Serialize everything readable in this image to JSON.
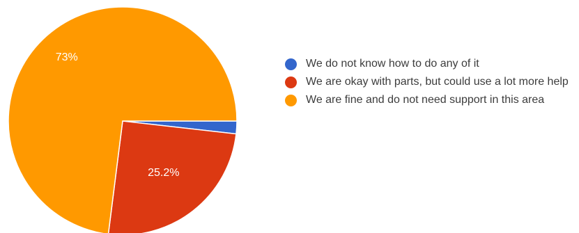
{
  "chart_data": {
    "type": "pie",
    "title": "",
    "categories": [
      "We do not know how to do any of it",
      "We are okay with parts, but could use a lot more help",
      "We are fine and do not need support in this area"
    ],
    "values": [
      1.8,
      25.2,
      73
    ],
    "labels": [
      "",
      "25.2%",
      "73%"
    ],
    "colors": [
      "#3366cc",
      "#dc3912",
      "#ff9900"
    ],
    "start_angle_degrees": 90,
    "direction": "clockwise",
    "legend_position": "right"
  }
}
